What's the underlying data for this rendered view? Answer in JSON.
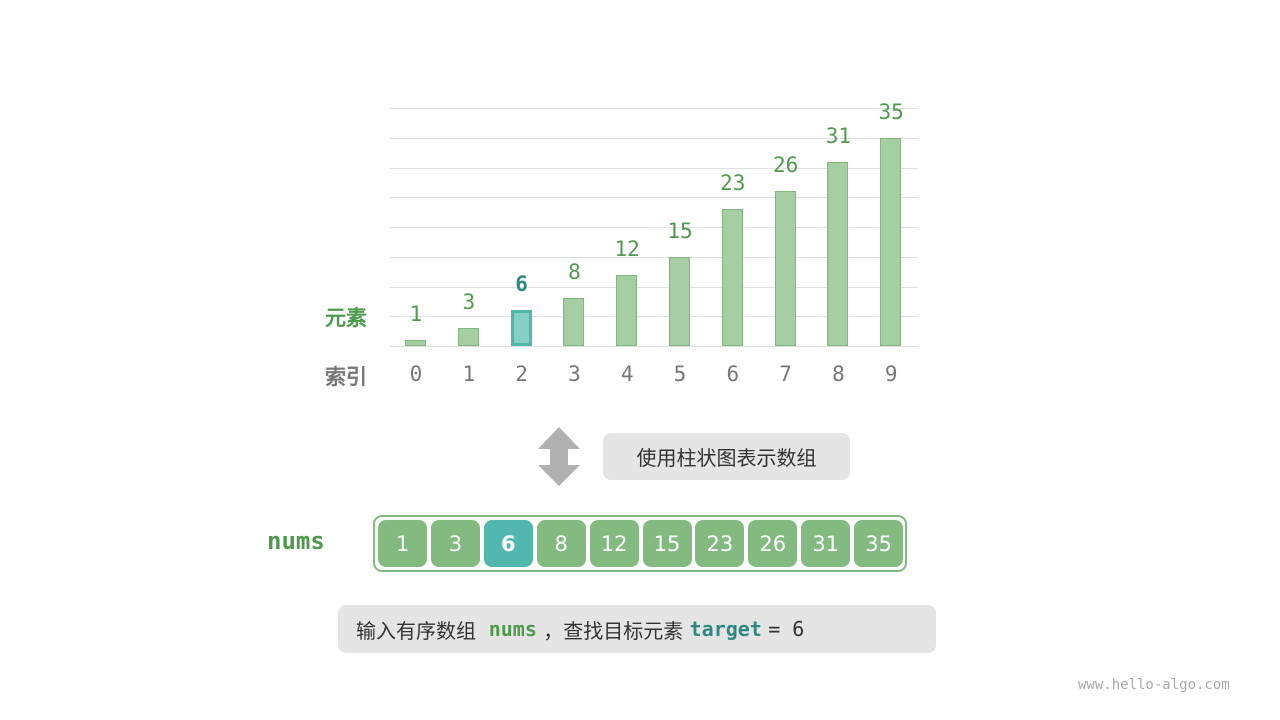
{
  "chart_data": {
    "type": "bar",
    "categories": [
      "0",
      "1",
      "2",
      "3",
      "4",
      "5",
      "6",
      "7",
      "8",
      "9"
    ],
    "values": [
      1,
      3,
      6,
      8,
      12,
      15,
      23,
      26,
      31,
      35
    ],
    "highlight_index": 2,
    "ylim": [
      0,
      40
    ],
    "grid_step": 5,
    "row_labels": {
      "value": "元素",
      "index": "索引"
    }
  },
  "arrow_label": "使用柱状图表示数组",
  "array": {
    "name": "nums",
    "values": [
      "1",
      "3",
      "6",
      "8",
      "12",
      "15",
      "23",
      "26",
      "31",
      "35"
    ],
    "highlight_index": 2
  },
  "caption": {
    "prefix": "输入有序数组",
    "nums": "nums",
    "middle": "，查找目标元素",
    "target": "target",
    "eq": "= 6"
  },
  "watermark": "www.hello-algo.com",
  "colors": {
    "bar": "#a5cfa3",
    "highlight": "#52b8af",
    "label_green": "#4f9a4d",
    "teal": "#2e8a80"
  }
}
